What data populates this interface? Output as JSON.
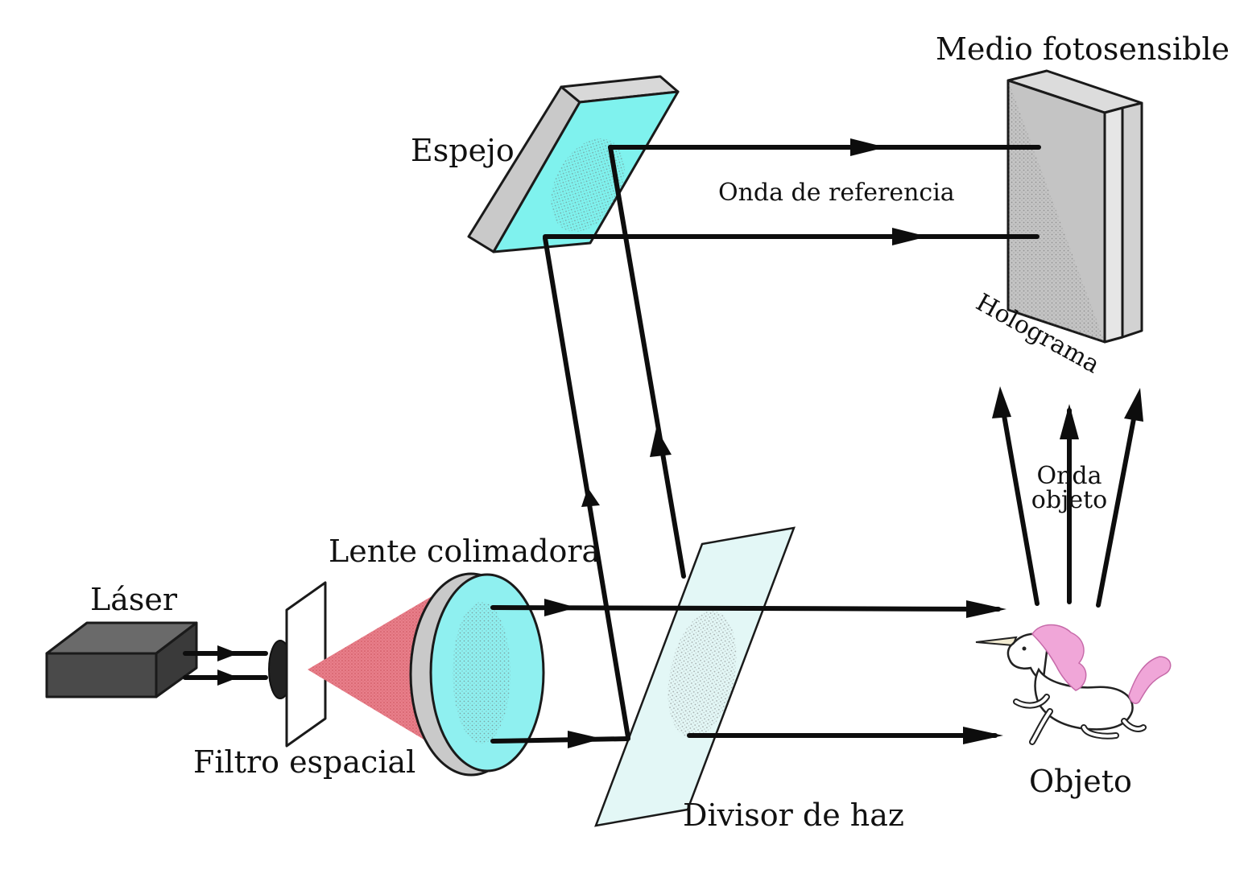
{
  "labels": {
    "laser": "Láser",
    "spatial_filter": "Filtro espacial",
    "collimating_lens": "Lente colimadora",
    "mirror": "Espejo",
    "reference_wave": "Onda de referencia",
    "photosensitive_medium": "Medio fotosensible",
    "hologram": "Holograma",
    "object_wave_line1": "Onda",
    "object_wave_line2": "objeto",
    "beam_splitter": "Divisor de haz",
    "object": "Objeto"
  },
  "colors": {
    "laser_body": "#4a4a4a",
    "mirror_face": "#7ff2ee",
    "mirror_edge": "#c9c9c9",
    "lens_face": "#8ff0f0",
    "cone": "#e87f8a",
    "splitter": "#e3f7f6",
    "medium_face": "#c4c4c4",
    "medium_side": "#e6e6e6",
    "unicorn_mane": "#f0a6d8",
    "beam": "#0d0d0d"
  }
}
